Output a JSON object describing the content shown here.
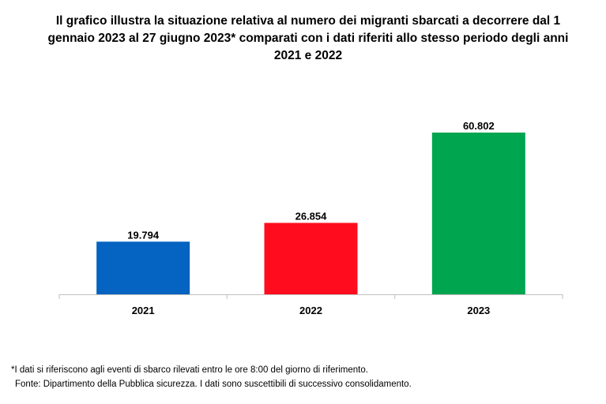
{
  "chart_data": {
    "type": "bar",
    "title": "Il grafico illustra la situazione relativa al numero dei migranti sbarcati a decorrere dal 1 gennaio 2023 al 27 giugno 2023* comparati con i dati riferiti allo stesso periodo degli anni 2021 e 2022",
    "categories": [
      "2021",
      "2022",
      "2023"
    ],
    "values": [
      19794,
      26854,
      60802
    ],
    "value_labels": [
      "19.794",
      "26.854",
      "60.802"
    ],
    "bar_colors": [
      "#0563c1",
      "#ff0d1f",
      "#00a550"
    ],
    "xlabel": "",
    "ylabel": "",
    "ylim": [
      0,
      70000
    ],
    "grid": false,
    "legend": "none"
  },
  "notes": {
    "footnote": "*I dati si riferiscono agli eventi di sbarco rilevati entro le ore 8:00 del giorno di riferimento.",
    "source": "Fonte: Dipartimento della Pubblica sicurezza. I dati sono suscettibili di successivo consolidamento."
  }
}
